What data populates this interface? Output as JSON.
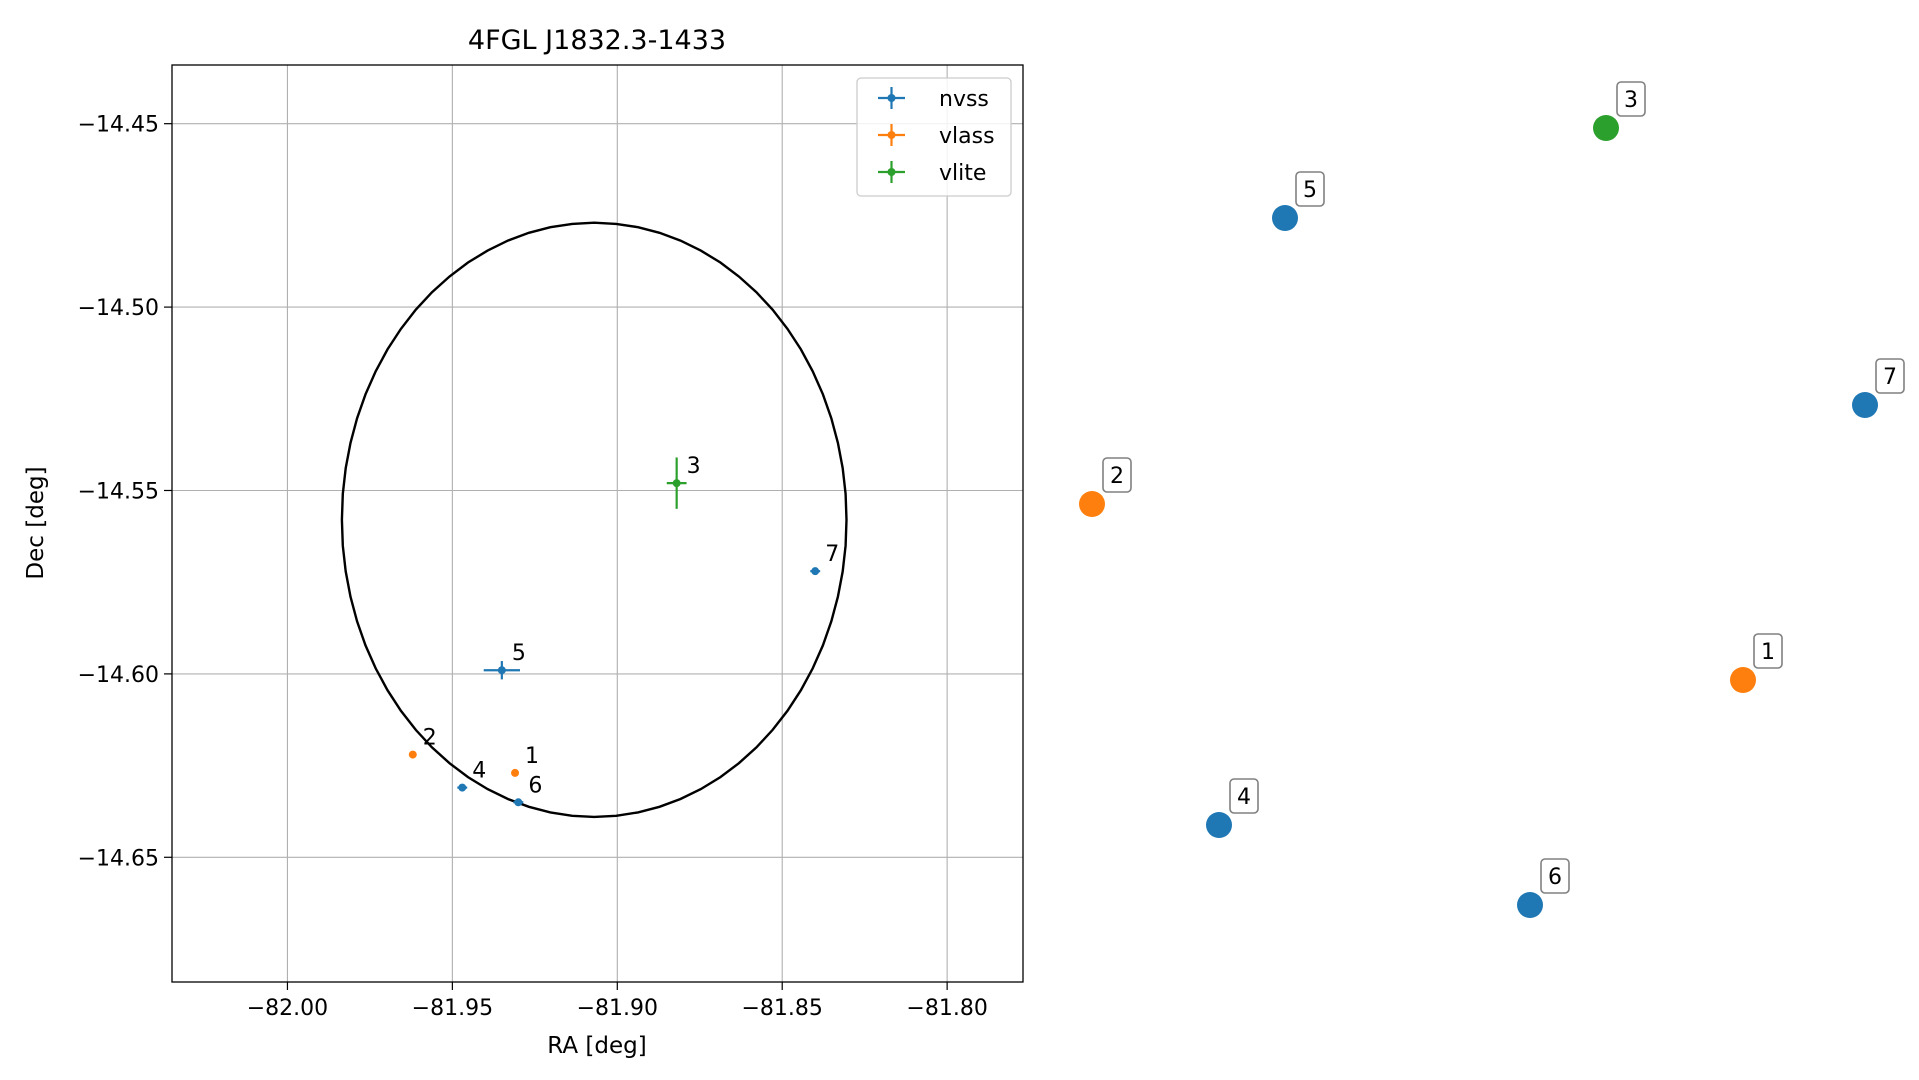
{
  "colors": {
    "nvss": "#1f77b4",
    "vlass": "#ff7f0e",
    "vlite": "#2ca02c",
    "grid": "#b0b0b0",
    "ellipse": "#000000"
  },
  "chart_data": [
    {
      "type": "scatter",
      "title": "4FGL J1832.3-1433",
      "xlabel": "RA [deg]",
      "ylabel": "Dec [deg]",
      "xlim": [
        -82.035,
        -81.777
      ],
      "ylim": [
        -14.684,
        -14.434
      ],
      "xticks": [
        -82.0,
        -81.95,
        -81.9,
        -81.85,
        -81.8
      ],
      "xtick_labels": [
        "−82.00",
        "−81.95",
        "−81.90",
        "−81.85",
        "−81.80"
      ],
      "yticks": [
        -14.45,
        -14.5,
        -14.55,
        -14.6,
        -14.65
      ],
      "ytick_labels": [
        "−14.45",
        "−14.50",
        "−14.55",
        "−14.60",
        "−14.65"
      ],
      "grid": true,
      "legend_position": "top-right",
      "legend": [
        "nvss",
        "vlass",
        "vlite"
      ],
      "error_ellipse": {
        "center": [
          -81.907,
          -14.558
        ],
        "semi_axis_ra": 0.0765,
        "semi_axis_dec": 0.081,
        "color": "black"
      },
      "series": [
        {
          "name": "nvss",
          "color_key": "nvss",
          "points": [
            {
              "label": "4",
              "x": -81.947,
              "y": -14.631,
              "xerr": 0.0015,
              "yerr": 0.0005
            },
            {
              "label": "5",
              "x": -81.935,
              "y": -14.599,
              "xerr": 0.0055,
              "yerr": 0.0025
            },
            {
              "label": "6",
              "x": -81.93,
              "y": -14.635,
              "xerr": 0.0015,
              "yerr": 0.0005
            },
            {
              "label": "7",
              "x": -81.84,
              "y": -14.572,
              "xerr": 0.0015,
              "yerr": 0.0005
            }
          ]
        },
        {
          "name": "vlass",
          "color_key": "vlass",
          "points": [
            {
              "label": "1",
              "x": -81.931,
              "y": -14.627,
              "xerr": 0.0004,
              "yerr": 0.0004
            },
            {
              "label": "2",
              "x": -81.962,
              "y": -14.622,
              "xerr": 0.0004,
              "yerr": 0.0004
            }
          ]
        },
        {
          "name": "vlite",
          "color_key": "vlite",
          "points": [
            {
              "label": "3",
              "x": -81.882,
              "y": -14.548,
              "xerr": 0.003,
              "yerr": 0.007
            }
          ]
        }
      ]
    },
    {
      "type": "scatter",
      "title": "",
      "axes_visible": false,
      "points": [
        {
          "label": "1",
          "series": "vlass",
          "x": -81.931,
          "y": -14.627
        },
        {
          "label": "2",
          "series": "vlass",
          "x": -81.962,
          "y": -14.622
        },
        {
          "label": "3",
          "series": "vlite",
          "x": -81.882,
          "y": -14.548
        },
        {
          "label": "4",
          "series": "nvss",
          "x": -81.947,
          "y": -14.631
        },
        {
          "label": "5",
          "series": "nvss",
          "x": -81.935,
          "y": -14.599
        },
        {
          "label": "6",
          "series": "nvss",
          "x": -81.93,
          "y": -14.635
        },
        {
          "label": "7",
          "series": "nvss",
          "x": -81.84,
          "y": -14.572
        }
      ]
    }
  ]
}
